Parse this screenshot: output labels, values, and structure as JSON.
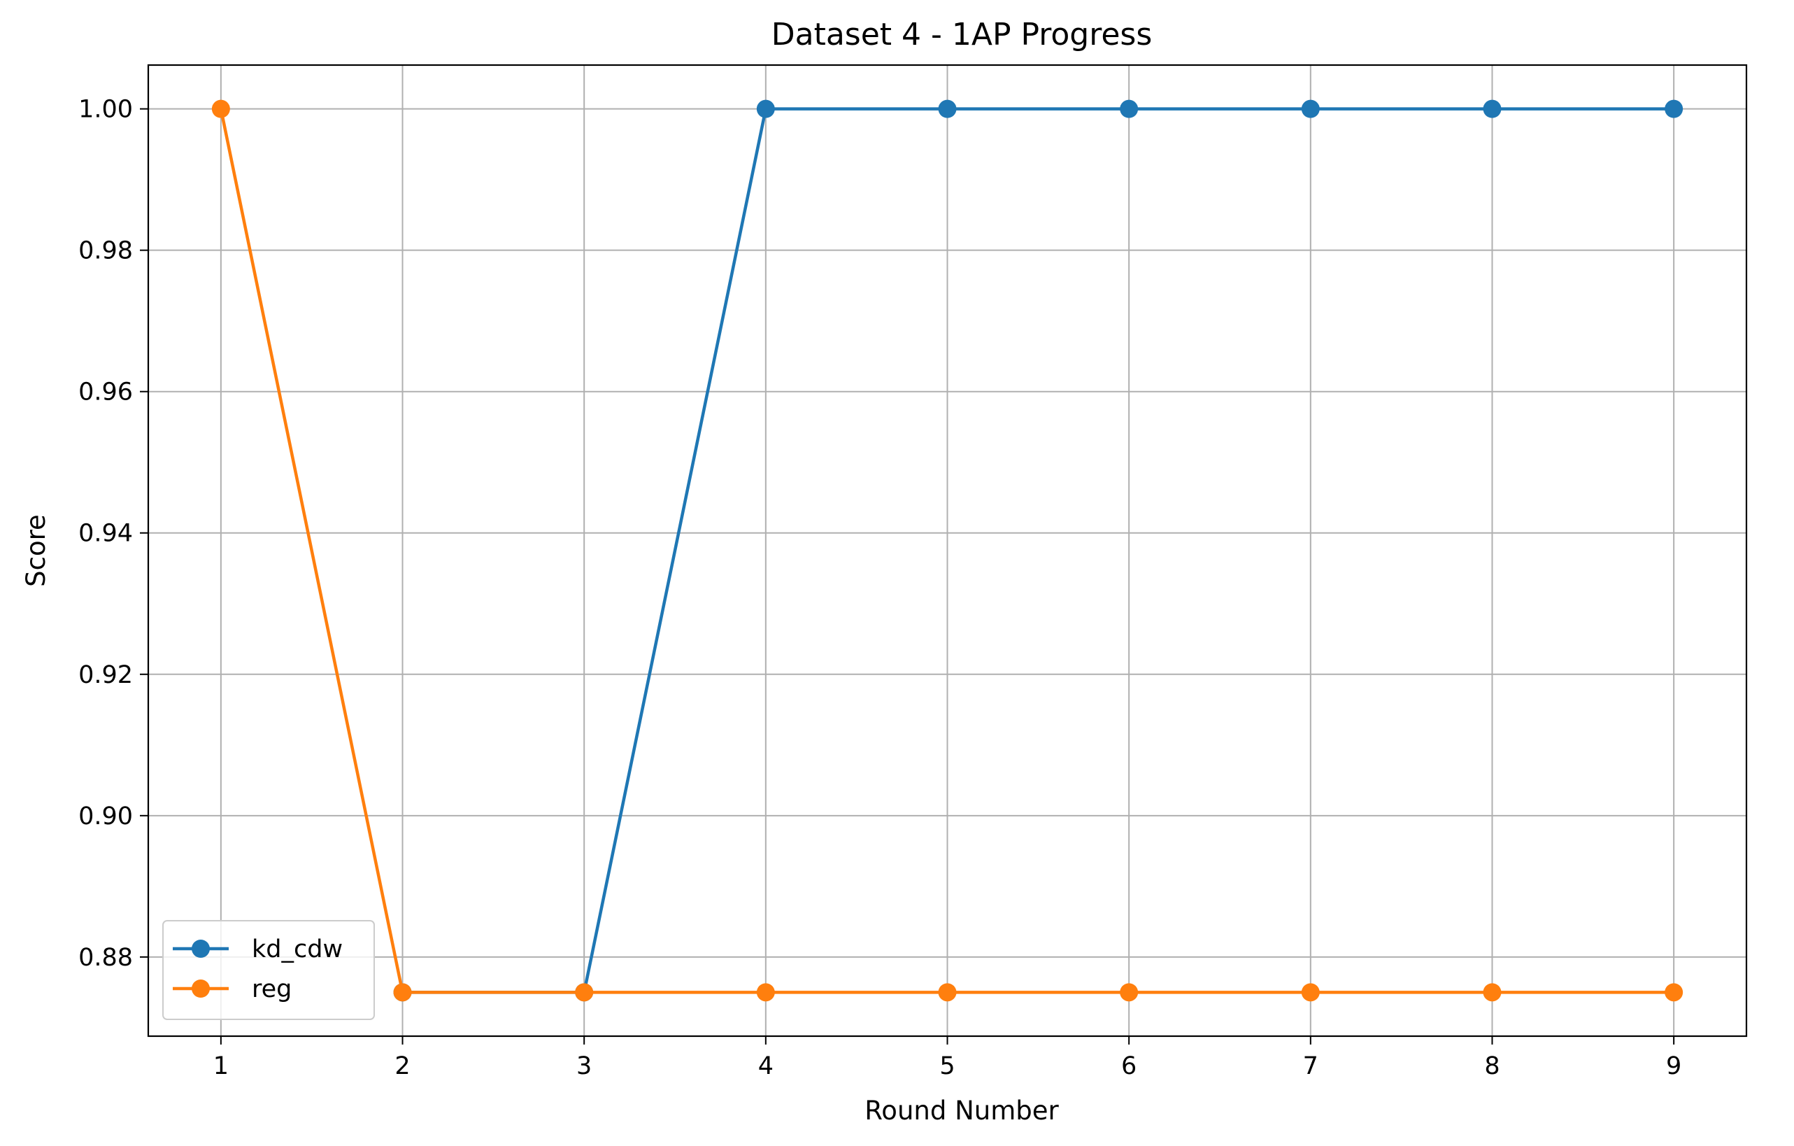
{
  "chart_data": {
    "type": "line",
    "title": "Dataset 4 - 1AP Progress",
    "xlabel": "Round Number",
    "ylabel": "Score",
    "x": [
      1,
      2,
      3,
      4,
      5,
      6,
      7,
      8,
      9
    ],
    "xticks": [
      "1",
      "2",
      "3",
      "4",
      "5",
      "6",
      "7",
      "8",
      "9"
    ],
    "yticks": [
      "0.88",
      "0.90",
      "0.92",
      "0.94",
      "0.96",
      "0.98",
      "1.00"
    ],
    "xlim": [
      0.6,
      9.4
    ],
    "ylim": [
      0.8688,
      1.0062
    ],
    "grid": true,
    "legend_position": "lower-left",
    "series": [
      {
        "name": "kd_cdw",
        "color": "#1f77b4",
        "marker": "circle",
        "values": [
          null,
          0.875,
          0.875,
          1.0,
          1.0,
          1.0,
          1.0,
          1.0,
          1.0
        ]
      },
      {
        "name": "reg",
        "color": "#ff7f0e",
        "marker": "circle",
        "values": [
          1.0,
          0.875,
          0.875,
          0.875,
          0.875,
          0.875,
          0.875,
          0.875,
          0.875
        ]
      }
    ]
  }
}
